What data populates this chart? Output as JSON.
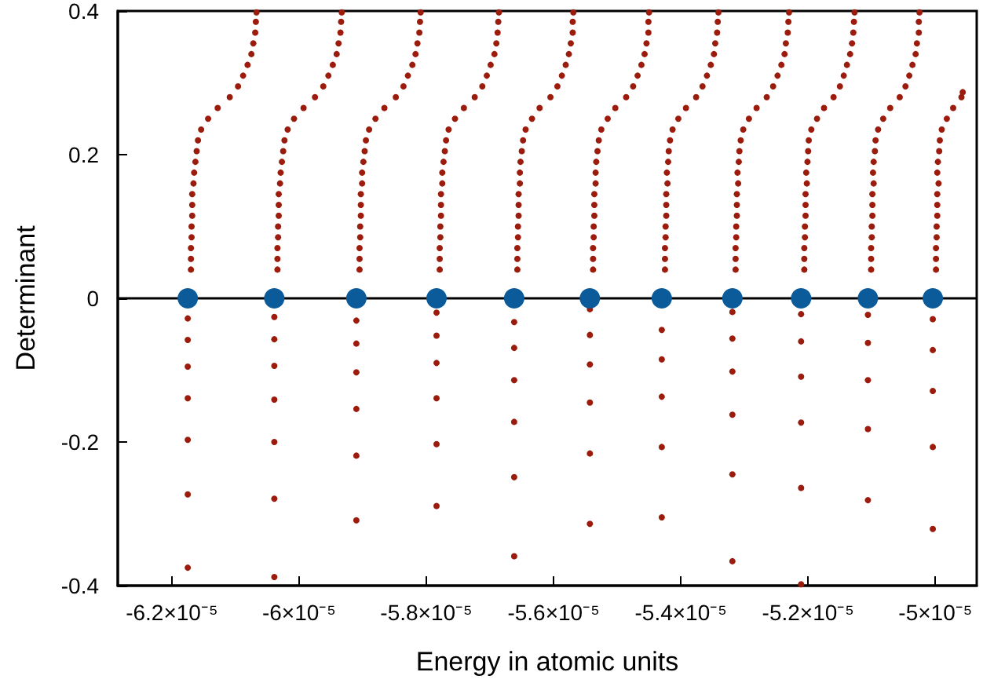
{
  "chart_data": {
    "type": "scatter",
    "xlabel": "Energy in atomic units",
    "ylabel": "Determinant",
    "xlim": [
      -6.285e-05,
      -4.935e-05
    ],
    "ylim": [
      -0.4,
      0.4
    ],
    "xticks": [
      {
        "value": -6.2e-05,
        "label": "-6.2×10⁻⁵"
      },
      {
        "value": -6e-05,
        "label": "-6×10⁻⁵"
      },
      {
        "value": -5.8e-05,
        "label": "-5.8×10⁻⁵"
      },
      {
        "value": -5.6e-05,
        "label": "-5.6×10⁻⁵"
      },
      {
        "value": -5.4e-05,
        "label": "-5.4×10⁻⁵"
      },
      {
        "value": -5.2e-05,
        "label": "-5.2×10⁻⁵"
      },
      {
        "value": -5e-05,
        "label": "-5×10⁻⁵"
      }
    ],
    "yticks": [
      -0.4,
      -0.2,
      0,
      0.2,
      0.4
    ],
    "grid": false,
    "marker": "circle",
    "ref_lines": [
      {
        "axis": "y",
        "value": 0,
        "label": null,
        "color": "#000000"
      }
    ],
    "series": [
      {
        "color": "#9b1c0c",
        "x": [
          -6.175e-05,
          -6.175e-05,
          -6.175e-05,
          -6.175e-05,
          -6.175e-05,
          -6.175e-05,
          -6.175e-05,
          -6.17e-05,
          -6.17e-05,
          -6.17e-05,
          -6.169e-05,
          -6.169e-05,
          -6.168e-05,
          -6.168e-05,
          -6.168e-05,
          -6.166e-05,
          -6.165e-05,
          -6.163e-05,
          -6.161e-05,
          -6.159e-05,
          -6.154e-05,
          -6.143e-05,
          -6.128e-05,
          -6.109e-05,
          -6.096e-05,
          -6.088e-05,
          -6.081e-05,
          -6.075e-05,
          -6.072e-05,
          -6.069e-05,
          -6.068e-05,
          -6.067e-05
        ],
        "values": [
          -0.028,
          -0.058,
          -0.095,
          -0.139,
          -0.197,
          -0.273,
          -0.375,
          0.04,
          0.055,
          0.07,
          0.085,
          0.1,
          0.115,
          0.13,
          0.145,
          0.16,
          0.175,
          0.19,
          0.205,
          0.22,
          0.235,
          0.25,
          0.265,
          0.28,
          0.295,
          0.31,
          0.325,
          0.34,
          0.355,
          0.37,
          0.385,
          0.398
        ]
      },
      {
        "color": "#9b1c0c",
        "x": [
          -6.039e-05,
          -6.039e-05,
          -6.039e-05,
          -6.039e-05,
          -6.039e-05,
          -6.039e-05,
          -6.039e-05,
          -6.034e-05,
          -6.034e-05,
          -6.034e-05,
          -6.033e-05,
          -6.033e-05,
          -6.032e-05,
          -6.032e-05,
          -6.032e-05,
          -6.03e-05,
          -6.029e-05,
          -6.027e-05,
          -6.025e-05,
          -6.023e-05,
          -6.018e-05,
          -6.008e-05,
          -5.993e-05,
          -5.975e-05,
          -5.962e-05,
          -5.954e-05,
          -5.947e-05,
          -5.941e-05,
          -5.938e-05,
          -5.935e-05,
          -5.934e-05,
          -5.933e-05
        ],
        "values": [
          -0.026,
          -0.057,
          -0.094,
          -0.141,
          -0.2,
          -0.279,
          -0.388,
          0.04,
          0.055,
          0.07,
          0.085,
          0.1,
          0.115,
          0.13,
          0.145,
          0.16,
          0.175,
          0.19,
          0.205,
          0.22,
          0.235,
          0.25,
          0.265,
          0.28,
          0.295,
          0.31,
          0.325,
          0.34,
          0.355,
          0.37,
          0.385,
          0.398
        ]
      },
      {
        "color": "#9b1c0c",
        "x": [
          -5.91e-05,
          -5.91e-05,
          -5.91e-05,
          -5.91e-05,
          -5.91e-05,
          -5.91e-05,
          -5.905e-05,
          -5.905e-05,
          -5.905e-05,
          -5.904e-05,
          -5.904e-05,
          -5.903e-05,
          -5.903e-05,
          -5.903e-05,
          -5.901e-05,
          -5.901e-05,
          -5.899e-05,
          -5.897e-05,
          -5.895e-05,
          -5.89e-05,
          -5.88e-05,
          -5.866e-05,
          -5.848e-05,
          -5.836e-05,
          -5.829e-05,
          -5.822e-05,
          -5.817e-05,
          -5.814e-05,
          -5.811e-05,
          -5.81e-05,
          -5.809e-05
        ],
        "values": [
          -0.031,
          -0.063,
          -0.103,
          -0.154,
          -0.219,
          -0.309,
          0.04,
          0.055,
          0.07,
          0.085,
          0.1,
          0.115,
          0.13,
          0.145,
          0.16,
          0.175,
          0.19,
          0.205,
          0.22,
          0.235,
          0.25,
          0.265,
          0.28,
          0.295,
          0.31,
          0.325,
          0.34,
          0.355,
          0.37,
          0.385,
          0.398
        ]
      },
      {
        "color": "#9b1c0c",
        "x": [
          -5.784e-05,
          -5.784e-05,
          -5.784e-05,
          -5.784e-05,
          -5.784e-05,
          -5.784e-05,
          -5.779e-05,
          -5.779e-05,
          -5.779e-05,
          -5.778e-05,
          -5.778e-05,
          -5.777e-05,
          -5.777e-05,
          -5.777e-05,
          -5.775e-05,
          -5.775e-05,
          -5.773e-05,
          -5.771e-05,
          -5.769e-05,
          -5.765e-05,
          -5.755e-05,
          -5.741e-05,
          -5.724e-05,
          -5.712e-05,
          -5.705e-05,
          -5.699e-05,
          -5.693e-05,
          -5.69e-05,
          -5.688e-05,
          -5.687e-05,
          -5.686e-05
        ],
        "values": [
          -0.02,
          -0.052,
          -0.09,
          -0.139,
          -0.203,
          -0.289,
          0.04,
          0.055,
          0.07,
          0.085,
          0.1,
          0.115,
          0.13,
          0.145,
          0.16,
          0.175,
          0.19,
          0.205,
          0.22,
          0.235,
          0.25,
          0.265,
          0.28,
          0.295,
          0.31,
          0.325,
          0.34,
          0.355,
          0.37,
          0.385,
          0.398
        ]
      },
      {
        "color": "#9b1c0c",
        "x": [
          -5.662e-05,
          -5.662e-05,
          -5.662e-05,
          -5.662e-05,
          -5.662e-05,
          -5.662e-05,
          -5.657e-05,
          -5.657e-05,
          -5.657e-05,
          -5.656e-05,
          -5.656e-05,
          -5.655e-05,
          -5.655e-05,
          -5.655e-05,
          -5.653e-05,
          -5.653e-05,
          -5.652e-05,
          -5.65e-05,
          -5.648e-05,
          -5.644e-05,
          -5.634e-05,
          -5.622e-05,
          -5.605e-05,
          -5.594e-05,
          -5.587e-05,
          -5.581e-05,
          -5.576e-05,
          -5.573e-05,
          -5.57e-05,
          -5.57e-05,
          -5.569e-05
        ],
        "values": [
          -0.033,
          -0.069,
          -0.114,
          -0.172,
          -0.249,
          -0.359,
          0.04,
          0.055,
          0.07,
          0.085,
          0.1,
          0.115,
          0.13,
          0.145,
          0.16,
          0.175,
          0.19,
          0.205,
          0.22,
          0.235,
          0.25,
          0.265,
          0.28,
          0.295,
          0.31,
          0.325,
          0.34,
          0.355,
          0.37,
          0.385,
          0.398
        ]
      },
      {
        "color": "#9b1c0c",
        "x": [
          -5.543e-05,
          -5.543e-05,
          -5.543e-05,
          -5.543e-05,
          -5.543e-05,
          -5.543e-05,
          -5.538e-05,
          -5.538e-05,
          -5.538e-05,
          -5.537e-05,
          -5.537e-05,
          -5.536e-05,
          -5.536e-05,
          -5.536e-05,
          -5.534e-05,
          -5.534e-05,
          -5.533e-05,
          -5.531e-05,
          -5.529e-05,
          -5.525e-05,
          -5.515e-05,
          -5.503e-05,
          -5.486e-05,
          -5.475e-05,
          -5.468e-05,
          -5.462e-05,
          -5.457e-05,
          -5.454e-05,
          -5.451e-05,
          -5.451e-05,
          -5.45e-05
        ],
        "values": [
          -0.015,
          -0.051,
          -0.092,
          -0.145,
          -0.216,
          -0.314,
          0.04,
          0.055,
          0.07,
          0.085,
          0.1,
          0.115,
          0.13,
          0.145,
          0.16,
          0.175,
          0.19,
          0.205,
          0.22,
          0.235,
          0.25,
          0.265,
          0.28,
          0.295,
          0.31,
          0.325,
          0.34,
          0.355,
          0.37,
          0.385,
          0.398
        ]
      },
      {
        "color": "#9b1c0c",
        "x": [
          -5.43e-05,
          -5.43e-05,
          -5.43e-05,
          -5.43e-05,
          -5.43e-05,
          -5.425e-05,
          -5.425e-05,
          -5.425e-05,
          -5.424e-05,
          -5.424e-05,
          -5.423e-05,
          -5.423e-05,
          -5.423e-05,
          -5.421e-05,
          -5.422e-05,
          -5.42e-05,
          -5.419e-05,
          -5.417e-05,
          -5.413e-05,
          -5.404e-05,
          -5.392e-05,
          -5.376e-05,
          -5.366e-05,
          -5.359e-05,
          -5.353e-05,
          -5.348e-05,
          -5.346e-05,
          -5.343e-05,
          -5.342e-05,
          -5.341e-05
        ],
        "values": [
          -0.044,
          -0.085,
          -0.137,
          -0.207,
          -0.305,
          0.04,
          0.055,
          0.07,
          0.085,
          0.1,
          0.115,
          0.13,
          0.145,
          0.16,
          0.175,
          0.19,
          0.205,
          0.22,
          0.235,
          0.25,
          0.265,
          0.28,
          0.295,
          0.31,
          0.325,
          0.34,
          0.355,
          0.37,
          0.385,
          0.398
        ]
      },
      {
        "color": "#9b1c0c",
        "x": [
          -5.319e-05,
          -5.319e-05,
          -5.319e-05,
          -5.319e-05,
          -5.319e-05,
          -5.319e-05,
          -5.314e-05,
          -5.314e-05,
          -5.314e-05,
          -5.313e-05,
          -5.313e-05,
          -5.312e-05,
          -5.312e-05,
          -5.312e-05,
          -5.31e-05,
          -5.311e-05,
          -5.309e-05,
          -5.308e-05,
          -5.306e-05,
          -5.302e-05,
          -5.293e-05,
          -5.281e-05,
          -5.265e-05,
          -5.255e-05,
          -5.248e-05,
          -5.242e-05,
          -5.237e-05,
          -5.235e-05,
          -5.232e-05,
          -5.231e-05,
          -5.23e-05
        ],
        "values": [
          -0.019,
          -0.056,
          -0.102,
          -0.162,
          -0.245,
          -0.366,
          0.04,
          0.055,
          0.07,
          0.085,
          0.1,
          0.115,
          0.13,
          0.145,
          0.16,
          0.175,
          0.19,
          0.205,
          0.22,
          0.235,
          0.25,
          0.265,
          0.28,
          0.295,
          0.31,
          0.325,
          0.34,
          0.355,
          0.37,
          0.385,
          0.398
        ]
      },
      {
        "color": "#9b1c0c",
        "x": [
          -5.211e-05,
          -5.211e-05,
          -5.211e-05,
          -5.211e-05,
          -5.211e-05,
          -5.211e-05,
          -5.206e-05,
          -5.206e-05,
          -5.206e-05,
          -5.205e-05,
          -5.205e-05,
          -5.204e-05,
          -5.204e-05,
          -5.204e-05,
          -5.202e-05,
          -5.203e-05,
          -5.201e-05,
          -5.2e-05,
          -5.199e-05,
          -5.195e-05,
          -5.186e-05,
          -5.175e-05,
          -5.16e-05,
          -5.15e-05,
          -5.144e-05,
          -5.139e-05,
          -5.134e-05,
          -5.131e-05,
          -5.129e-05,
          -5.128e-05,
          -5.127e-05
        ],
        "values": [
          -0.022,
          -0.06,
          -0.109,
          -0.173,
          -0.264,
          -0.398,
          0.04,
          0.055,
          0.07,
          0.085,
          0.1,
          0.115,
          0.13,
          0.145,
          0.16,
          0.175,
          0.19,
          0.205,
          0.22,
          0.235,
          0.25,
          0.265,
          0.28,
          0.295,
          0.31,
          0.325,
          0.34,
          0.355,
          0.37,
          0.385,
          0.398
        ]
      },
      {
        "color": "#9b1c0c",
        "x": [
          -5.106e-05,
          -5.106e-05,
          -5.106e-05,
          -5.106e-05,
          -5.106e-05,
          -5.101e-05,
          -5.101e-05,
          -5.101e-05,
          -5.1e-05,
          -5.1e-05,
          -5.099e-05,
          -5.099e-05,
          -5.099e-05,
          -5.097e-05,
          -5.098e-05,
          -5.097e-05,
          -5.095e-05,
          -5.094e-05,
          -5.09e-05,
          -5.082e-05,
          -5.071e-05,
          -5.056e-05,
          -5.047e-05,
          -5.041e-05,
          -5.036e-05,
          -5.031e-05,
          -5.029e-05,
          -5.026e-05,
          -5.026e-05,
          -5.025e-05
        ],
        "values": [
          -0.023,
          -0.062,
          -0.114,
          -0.182,
          -0.281,
          0.04,
          0.055,
          0.07,
          0.085,
          0.1,
          0.115,
          0.13,
          0.145,
          0.16,
          0.175,
          0.19,
          0.205,
          0.22,
          0.235,
          0.25,
          0.265,
          0.28,
          0.295,
          0.31,
          0.325,
          0.34,
          0.355,
          0.37,
          0.385,
          0.398
        ]
      },
      {
        "color": "#9b1c0c",
        "x": [
          -5.004e-05,
          -5.004e-05,
          -5.004e-05,
          -5.004e-05,
          -5.004e-05,
          -4.999e-05,
          -4.999e-05,
          -4.999e-05,
          -4.998e-05,
          -4.998e-05,
          -4.997e-05,
          -4.997e-05,
          -4.997e-05,
          -4.995e-05,
          -4.997e-05,
          -4.996e-05,
          -4.994e-05,
          -4.993e-05,
          -4.99e-05,
          -4.982e-05,
          -4.972e-05,
          -4.959e-05,
          -4.957e-05
        ],
        "values": [
          -0.029,
          -0.072,
          -0.129,
          -0.207,
          -0.321,
          0.04,
          0.055,
          0.07,
          0.085,
          0.1,
          0.115,
          0.13,
          0.145,
          0.16,
          0.175,
          0.19,
          0.205,
          0.22,
          0.235,
          0.25,
          0.265,
          0.28,
          0.287
        ]
      },
      {
        "color": "#0b5a9a",
        "x": [
          -6.175e-05,
          -6.039e-05,
          -5.91e-05,
          -5.784e-05,
          -5.662e-05,
          -5.543e-05,
          -5.43e-05,
          -5.319e-05,
          -5.211e-05,
          -5.106e-05,
          -5.004e-05
        ],
        "values": [
          0,
          0,
          0,
          0,
          0,
          0,
          0,
          0,
          0,
          0,
          0
        ]
      }
    ]
  }
}
